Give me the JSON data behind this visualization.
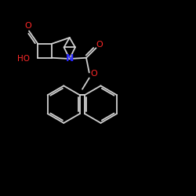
{
  "background_color": "#000000",
  "bond_color": "#d0d0d0",
  "o_color": "#ff2828",
  "n_color": "#2828ff",
  "figsize": [
    2.5,
    2.5
  ],
  "dpi": 100,
  "xlim": [
    0,
    10
  ],
  "ylim": [
    0,
    10
  ]
}
